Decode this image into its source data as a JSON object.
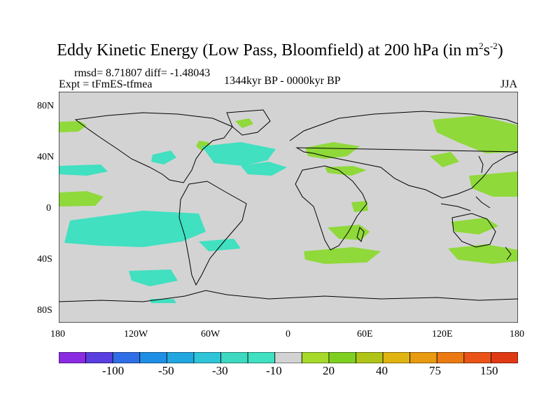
{
  "title": {
    "prefix": "Eddy Kinetic Energy (Low Pass, Bloomfield) at 200 hPa (in m",
    "sup1": "2",
    "mid": "s",
    "sup2": "-2",
    "suffix": ")"
  },
  "stats": {
    "rmsd_diff": "rmsd= 8.71807 diff= -1.48043"
  },
  "experiment": "Expt = tFmES-tfmea",
  "period": "1344kyr BP - 0000kyr BP",
  "season": "JJA",
  "lat_ticks": [
    "80N",
    "40N",
    "0",
    "40S",
    "80S"
  ],
  "lon_ticks": [
    "180",
    "120W",
    "60W",
    "0",
    "60E",
    "120E",
    "180"
  ],
  "colorbar": {
    "labels": [
      "-100",
      "-50",
      "-30",
      "-10",
      "20",
      "40",
      "75",
      "150"
    ],
    "colors": [
      "#8a2be2",
      "#5a3fe0",
      "#2f6ee6",
      "#1f8fe6",
      "#22a6e0",
      "#2fc4d8",
      "#3fd8c0",
      "#40e0c0",
      "#d3d3d3",
      "#a6d92a",
      "#7fcf22",
      "#b0c418",
      "#e0b410",
      "#e89a10",
      "#ec7a12",
      "#ea5418",
      "#e03a14"
    ]
  },
  "palette": {
    "background": "#d3d3d3",
    "negative": "#40e0c0",
    "positive": "#8fd93a"
  }
}
